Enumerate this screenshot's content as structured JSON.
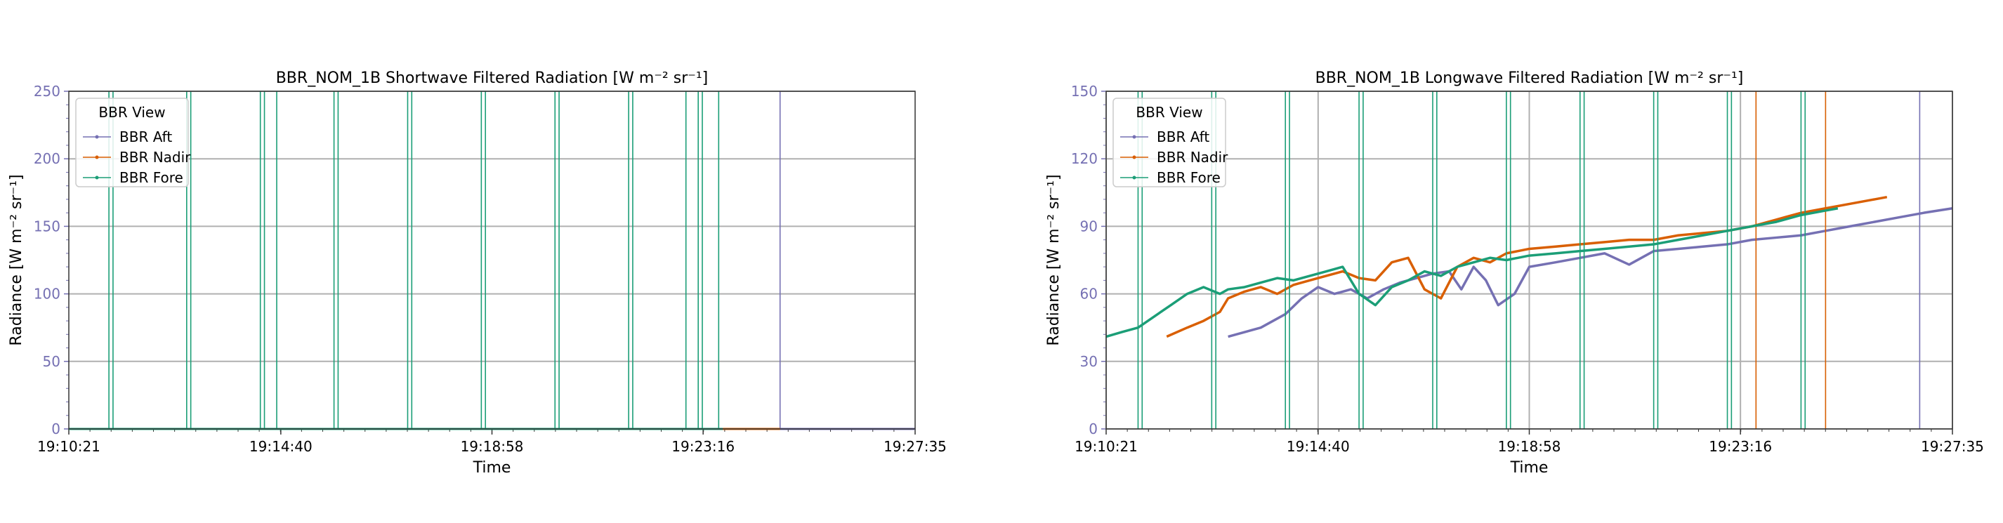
{
  "chart_data": [
    {
      "type": "line",
      "title": "BBR_NOM_1B Shortwave Filtered Radiation [W m⁻² sr⁻¹]",
      "xlabel": "Time",
      "ylabel": "Radiance [W m⁻² sr⁻¹]",
      "x_ticks": [
        "19:10:21",
        "19:14:40",
        "19:18:58",
        "19:23:16",
        "19:27:35"
      ],
      "xlim": [
        "19:10:21",
        "19:27:35"
      ],
      "ylim": [
        0,
        250
      ],
      "y_ticks": [
        "0",
        "50",
        "100",
        "150",
        "200",
        "250"
      ],
      "grid": "y",
      "legend": {
        "title": "BBR View",
        "position": "top-left"
      },
      "series": [
        {
          "name": "BBR Aft",
          "color": "#7570b3",
          "points": [
            [
              "19:24:40",
              0
            ],
            [
              "19:27:35",
              0
            ]
          ],
          "spikes": [
            "19:24:50"
          ]
        },
        {
          "name": "BBR Nadir",
          "color": "#d95f02",
          "points": [
            [
              "19:23:40",
              0
            ],
            [
              "19:24:50",
              0
            ]
          ],
          "spikes": []
        },
        {
          "name": "BBR Fore",
          "color": "#1b9e77",
          "points": [
            [
              "19:10:21",
              0
            ],
            [
              "19:23:40",
              0
            ]
          ],
          "spikes": [
            "19:11:10",
            "19:11:15",
            "19:12:45",
            "19:12:50",
            "19:14:15",
            "19:14:20",
            "19:14:35",
            "19:15:45",
            "19:15:50",
            "19:17:15",
            "19:17:20",
            "19:18:45",
            "19:18:50",
            "19:20:15",
            "19:20:20",
            "19:21:45",
            "19:21:50",
            "19:22:55",
            "19:23:10",
            "19:23:15",
            "19:23:35"
          ]
        }
      ]
    },
    {
      "type": "line",
      "title": "BBR_NOM_1B Longwave Filtered Radiation [W m⁻² sr⁻¹]",
      "xlabel": "Time",
      "ylabel": "Radiance [W m⁻² sr⁻¹]",
      "x_ticks": [
        "19:10:21",
        "19:14:40",
        "19:18:58",
        "19:23:16",
        "19:27:35"
      ],
      "xlim": [
        "19:10:21",
        "19:27:35"
      ],
      "ylim": [
        0,
        150
      ],
      "y_ticks": [
        "0",
        "30",
        "60",
        "90",
        "120",
        "150"
      ],
      "grid": "both",
      "legend": {
        "title": "BBR View",
        "position": "top-left"
      },
      "series": [
        {
          "name": "BBR Aft",
          "color": "#7570b3",
          "points": [
            [
              "19:12:50",
              41
            ],
            [
              "19:13:30",
              45
            ],
            [
              "19:14:00",
              51
            ],
            [
              "19:14:20",
              58
            ],
            [
              "19:14:40",
              63
            ],
            [
              "19:15:00",
              60
            ],
            [
              "19:15:20",
              62
            ],
            [
              "19:15:40",
              58
            ],
            [
              "19:16:00",
              62
            ],
            [
              "19:16:20",
              65
            ],
            [
              "19:16:40",
              67
            ],
            [
              "19:17:00",
              69
            ],
            [
              "19:17:20",
              70
            ],
            [
              "19:17:35",
              62
            ],
            [
              "19:17:50",
              72
            ],
            [
              "19:18:05",
              66
            ],
            [
              "19:18:20",
              55
            ],
            [
              "19:18:40",
              60
            ],
            [
              "19:18:58",
              72
            ],
            [
              "19:19:30",
              74
            ],
            [
              "19:20:00",
              76
            ],
            [
              "19:20:30",
              78
            ],
            [
              "19:21:00",
              73
            ],
            [
              "19:21:30",
              79
            ],
            [
              "19:22:00",
              80
            ],
            [
              "19:22:30",
              81
            ],
            [
              "19:23:00",
              82
            ],
            [
              "19:23:30",
              84
            ],
            [
              "19:24:00",
              85
            ],
            [
              "19:24:30",
              86
            ],
            [
              "19:25:00",
              88
            ],
            [
              "19:25:30",
              90
            ],
            [
              "19:26:00",
              92
            ],
            [
              "19:26:30",
              94
            ],
            [
              "19:27:00",
              96
            ],
            [
              "19:27:35",
              98
            ]
          ],
          "spikes": [
            "19:26:55"
          ]
        },
        {
          "name": "BBR Nadir",
          "color": "#d95f02",
          "points": [
            [
              "19:11:35",
              41
            ],
            [
              "19:12:00",
              45
            ],
            [
              "19:12:20",
              48
            ],
            [
              "19:12:40",
              52
            ],
            [
              "19:12:50",
              58
            ],
            [
              "19:13:10",
              61
            ],
            [
              "19:13:30",
              63
            ],
            [
              "19:13:50",
              60
            ],
            [
              "19:14:10",
              64
            ],
            [
              "19:14:30",
              66
            ],
            [
              "19:14:50",
              68
            ],
            [
              "19:15:10",
              70
            ],
            [
              "19:15:30",
              67
            ],
            [
              "19:15:50",
              66
            ],
            [
              "19:16:10",
              74
            ],
            [
              "19:16:30",
              76
            ],
            [
              "19:16:50",
              62
            ],
            [
              "19:17:10",
              58
            ],
            [
              "19:17:30",
              72
            ],
            [
              "19:17:50",
              76
            ],
            [
              "19:18:10",
              74
            ],
            [
              "19:18:30",
              78
            ],
            [
              "19:18:58",
              80
            ],
            [
              "19:19:30",
              81
            ],
            [
              "19:20:00",
              82
            ],
            [
              "19:20:30",
              83
            ],
            [
              "19:21:00",
              84
            ],
            [
              "19:21:30",
              84
            ],
            [
              "19:22:00",
              86
            ],
            [
              "19:22:30",
              87
            ],
            [
              "19:23:00",
              88
            ],
            [
              "19:23:30",
              90
            ],
            [
              "19:24:00",
              93
            ],
            [
              "19:24:30",
              96
            ],
            [
              "19:25:00",
              98
            ],
            [
              "19:25:30",
              100
            ],
            [
              "19:26:00",
              102
            ],
            [
              "19:26:15",
              103
            ]
          ],
          "spikes": [
            "19:23:35",
            "19:25:00"
          ]
        },
        {
          "name": "BBR Fore",
          "color": "#1b9e77",
          "points": [
            [
              "19:10:21",
              41
            ],
            [
              "19:10:40",
              43
            ],
            [
              "19:11:00",
              45
            ],
            [
              "19:11:20",
              50
            ],
            [
              "19:11:40",
              55
            ],
            [
              "19:12:00",
              60
            ],
            [
              "19:12:20",
              63
            ],
            [
              "19:12:40",
              60
            ],
            [
              "19:12:50",
              62
            ],
            [
              "19:13:10",
              63
            ],
            [
              "19:13:30",
              65
            ],
            [
              "19:13:50",
              67
            ],
            [
              "19:14:10",
              66
            ],
            [
              "19:14:30",
              68
            ],
            [
              "19:14:50",
              70
            ],
            [
              "19:15:10",
              72
            ],
            [
              "19:15:30",
              60
            ],
            [
              "19:15:50",
              55
            ],
            [
              "19:16:10",
              63
            ],
            [
              "19:16:30",
              66
            ],
            [
              "19:16:50",
              70
            ],
            [
              "19:17:10",
              68
            ],
            [
              "19:17:30",
              72
            ],
            [
              "19:17:50",
              74
            ],
            [
              "19:18:10",
              76
            ],
            [
              "19:18:30",
              75
            ],
            [
              "19:18:58",
              77
            ],
            [
              "19:19:30",
              78
            ],
            [
              "19:20:00",
              79
            ],
            [
              "19:20:30",
              80
            ],
            [
              "19:21:00",
              81
            ],
            [
              "19:21:30",
              82
            ],
            [
              "19:22:00",
              84
            ],
            [
              "19:22:30",
              86
            ],
            [
              "19:23:00",
              88
            ],
            [
              "19:23:30",
              90
            ],
            [
              "19:24:00",
              92
            ],
            [
              "19:24:30",
              95
            ],
            [
              "19:25:00",
              97
            ],
            [
              "19:25:15",
              98
            ]
          ],
          "spikes": [
            "19:11:00",
            "19:11:05",
            "19:12:30",
            "19:12:35",
            "19:14:00",
            "19:14:05",
            "19:15:30",
            "19:15:35",
            "19:17:00",
            "19:17:05",
            "19:18:30",
            "19:18:35",
            "19:20:00",
            "19:20:05",
            "19:21:30",
            "19:21:35",
            "19:23:00",
            "19:23:05",
            "19:24:30",
            "19:24:35"
          ]
        }
      ]
    }
  ]
}
